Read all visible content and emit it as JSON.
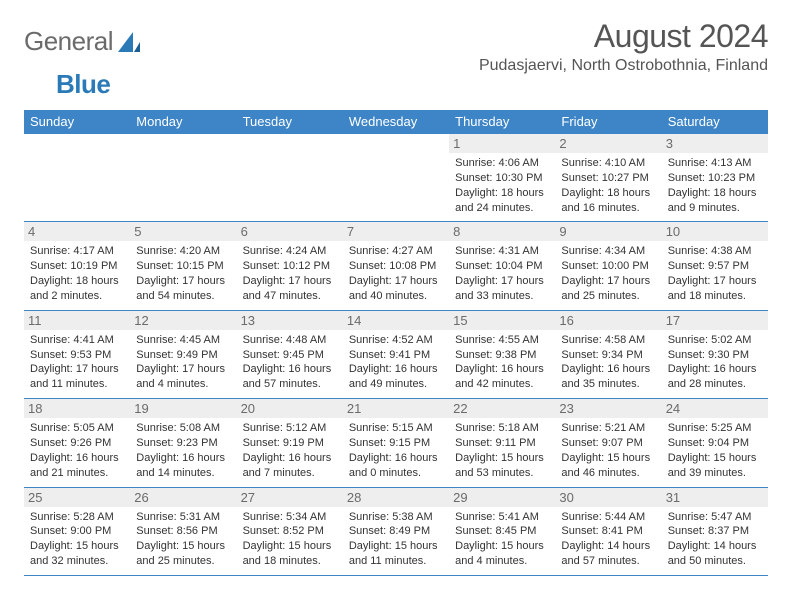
{
  "brand": {
    "word1": "General",
    "word2": "Blue"
  },
  "title": "August 2024",
  "location": "Pudasjaervi, North Ostrobothnia, Finland",
  "colors": {
    "header_bg": "#3d85c6",
    "header_text": "#ffffff",
    "daynum_bg": "#eeeeee",
    "daynum_text": "#6b6b6b",
    "rule": "#3d85c6",
    "body_text": "#333333",
    "title_text": "#555555",
    "logo_gray": "#6b6b6b",
    "logo_blue": "#2a7ab8"
  },
  "weekdays": [
    "Sunday",
    "Monday",
    "Tuesday",
    "Wednesday",
    "Thursday",
    "Friday",
    "Saturday"
  ],
  "weeks": [
    [
      null,
      null,
      null,
      null,
      {
        "day": "1",
        "sunrise": "Sunrise: 4:06 AM",
        "sunset": "Sunset: 10:30 PM",
        "daylight": "Daylight: 18 hours and 24 minutes."
      },
      {
        "day": "2",
        "sunrise": "Sunrise: 4:10 AM",
        "sunset": "Sunset: 10:27 PM",
        "daylight": "Daylight: 18 hours and 16 minutes."
      },
      {
        "day": "3",
        "sunrise": "Sunrise: 4:13 AM",
        "sunset": "Sunset: 10:23 PM",
        "daylight": "Daylight: 18 hours and 9 minutes."
      }
    ],
    [
      {
        "day": "4",
        "sunrise": "Sunrise: 4:17 AM",
        "sunset": "Sunset: 10:19 PM",
        "daylight": "Daylight: 18 hours and 2 minutes."
      },
      {
        "day": "5",
        "sunrise": "Sunrise: 4:20 AM",
        "sunset": "Sunset: 10:15 PM",
        "daylight": "Daylight: 17 hours and 54 minutes."
      },
      {
        "day": "6",
        "sunrise": "Sunrise: 4:24 AM",
        "sunset": "Sunset: 10:12 PM",
        "daylight": "Daylight: 17 hours and 47 minutes."
      },
      {
        "day": "7",
        "sunrise": "Sunrise: 4:27 AM",
        "sunset": "Sunset: 10:08 PM",
        "daylight": "Daylight: 17 hours and 40 minutes."
      },
      {
        "day": "8",
        "sunrise": "Sunrise: 4:31 AM",
        "sunset": "Sunset: 10:04 PM",
        "daylight": "Daylight: 17 hours and 33 minutes."
      },
      {
        "day": "9",
        "sunrise": "Sunrise: 4:34 AM",
        "sunset": "Sunset: 10:00 PM",
        "daylight": "Daylight: 17 hours and 25 minutes."
      },
      {
        "day": "10",
        "sunrise": "Sunrise: 4:38 AM",
        "sunset": "Sunset: 9:57 PM",
        "daylight": "Daylight: 17 hours and 18 minutes."
      }
    ],
    [
      {
        "day": "11",
        "sunrise": "Sunrise: 4:41 AM",
        "sunset": "Sunset: 9:53 PM",
        "daylight": "Daylight: 17 hours and 11 minutes."
      },
      {
        "day": "12",
        "sunrise": "Sunrise: 4:45 AM",
        "sunset": "Sunset: 9:49 PM",
        "daylight": "Daylight: 17 hours and 4 minutes."
      },
      {
        "day": "13",
        "sunrise": "Sunrise: 4:48 AM",
        "sunset": "Sunset: 9:45 PM",
        "daylight": "Daylight: 16 hours and 57 minutes."
      },
      {
        "day": "14",
        "sunrise": "Sunrise: 4:52 AM",
        "sunset": "Sunset: 9:41 PM",
        "daylight": "Daylight: 16 hours and 49 minutes."
      },
      {
        "day": "15",
        "sunrise": "Sunrise: 4:55 AM",
        "sunset": "Sunset: 9:38 PM",
        "daylight": "Daylight: 16 hours and 42 minutes."
      },
      {
        "day": "16",
        "sunrise": "Sunrise: 4:58 AM",
        "sunset": "Sunset: 9:34 PM",
        "daylight": "Daylight: 16 hours and 35 minutes."
      },
      {
        "day": "17",
        "sunrise": "Sunrise: 5:02 AM",
        "sunset": "Sunset: 9:30 PM",
        "daylight": "Daylight: 16 hours and 28 minutes."
      }
    ],
    [
      {
        "day": "18",
        "sunrise": "Sunrise: 5:05 AM",
        "sunset": "Sunset: 9:26 PM",
        "daylight": "Daylight: 16 hours and 21 minutes."
      },
      {
        "day": "19",
        "sunrise": "Sunrise: 5:08 AM",
        "sunset": "Sunset: 9:23 PM",
        "daylight": "Daylight: 16 hours and 14 minutes."
      },
      {
        "day": "20",
        "sunrise": "Sunrise: 5:12 AM",
        "sunset": "Sunset: 9:19 PM",
        "daylight": "Daylight: 16 hours and 7 minutes."
      },
      {
        "day": "21",
        "sunrise": "Sunrise: 5:15 AM",
        "sunset": "Sunset: 9:15 PM",
        "daylight": "Daylight: 16 hours and 0 minutes."
      },
      {
        "day": "22",
        "sunrise": "Sunrise: 5:18 AM",
        "sunset": "Sunset: 9:11 PM",
        "daylight": "Daylight: 15 hours and 53 minutes."
      },
      {
        "day": "23",
        "sunrise": "Sunrise: 5:21 AM",
        "sunset": "Sunset: 9:07 PM",
        "daylight": "Daylight: 15 hours and 46 minutes."
      },
      {
        "day": "24",
        "sunrise": "Sunrise: 5:25 AM",
        "sunset": "Sunset: 9:04 PM",
        "daylight": "Daylight: 15 hours and 39 minutes."
      }
    ],
    [
      {
        "day": "25",
        "sunrise": "Sunrise: 5:28 AM",
        "sunset": "Sunset: 9:00 PM",
        "daylight": "Daylight: 15 hours and 32 minutes."
      },
      {
        "day": "26",
        "sunrise": "Sunrise: 5:31 AM",
        "sunset": "Sunset: 8:56 PM",
        "daylight": "Daylight: 15 hours and 25 minutes."
      },
      {
        "day": "27",
        "sunrise": "Sunrise: 5:34 AM",
        "sunset": "Sunset: 8:52 PM",
        "daylight": "Daylight: 15 hours and 18 minutes."
      },
      {
        "day": "28",
        "sunrise": "Sunrise: 5:38 AM",
        "sunset": "Sunset: 8:49 PM",
        "daylight": "Daylight: 15 hours and 11 minutes."
      },
      {
        "day": "29",
        "sunrise": "Sunrise: 5:41 AM",
        "sunset": "Sunset: 8:45 PM",
        "daylight": "Daylight: 15 hours and 4 minutes."
      },
      {
        "day": "30",
        "sunrise": "Sunrise: 5:44 AM",
        "sunset": "Sunset: 8:41 PM",
        "daylight": "Daylight: 14 hours and 57 minutes."
      },
      {
        "day": "31",
        "sunrise": "Sunrise: 5:47 AM",
        "sunset": "Sunset: 8:37 PM",
        "daylight": "Daylight: 14 hours and 50 minutes."
      }
    ]
  ]
}
